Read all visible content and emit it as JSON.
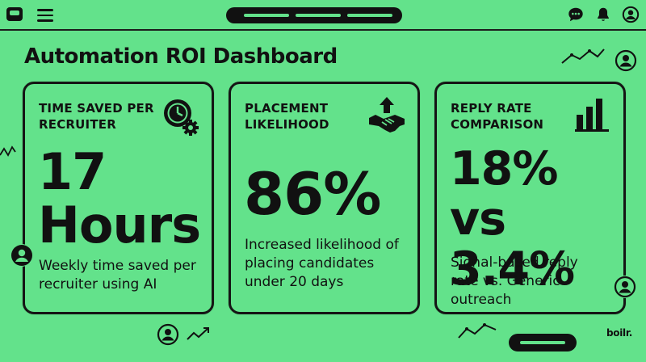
{
  "header": {
    "title": "Automation ROI Dashboard"
  },
  "cards": [
    {
      "title": "TIME SAVED PER RECRUITER",
      "value": "17 Hours",
      "description": "Weekly time saved per recruiter using AI",
      "icon": "clock-gear-icon"
    },
    {
      "title": "PLACEMENT LIKELIHOOD",
      "value": "86%",
      "description": "Increased likelihood of placing candidates under 20 days",
      "icon": "handshake-icon"
    },
    {
      "title": "REPLY RATE COMPARISON",
      "value": "18% vs 3.4%",
      "description": "Signal-based reply rate vs. Generic outreach",
      "icon": "bar-chart-icon"
    }
  ],
  "footer": {
    "brand": "boilr."
  },
  "colors": {
    "background": "#63e28b",
    "foreground": "#111111"
  }
}
